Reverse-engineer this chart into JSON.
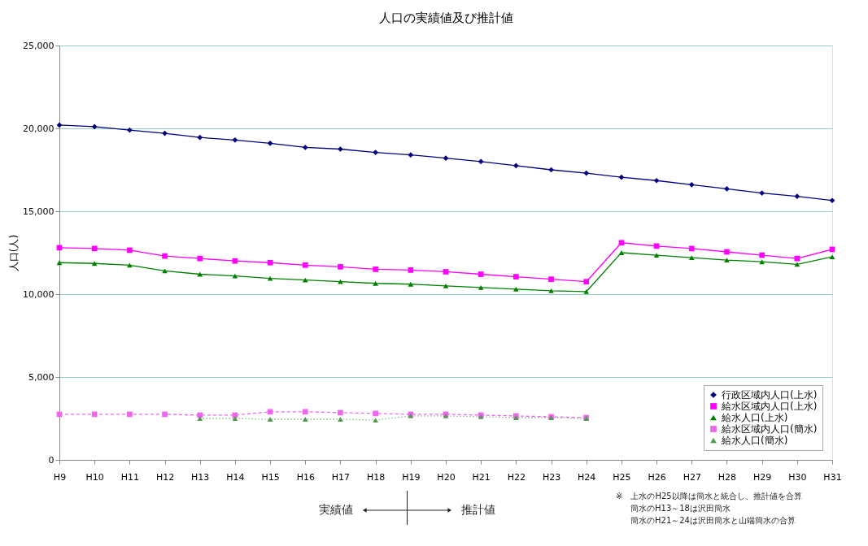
{
  "chart_data": {
    "type": "line",
    "title": "人口の実績値及び推計値",
    "ylabel": "人口(人)",
    "categories": [
      "H9",
      "H10",
      "H11",
      "H12",
      "H13",
      "H14",
      "H15",
      "H16",
      "H17",
      "H18",
      "H19",
      "H20",
      "H21",
      "H22",
      "H23",
      "H24",
      "H25",
      "H26",
      "H27",
      "H28",
      "H29",
      "H30",
      "H31"
    ],
    "series": [
      {
        "name": "行政区域内人口(上水)",
        "color": "#000080",
        "marker": "diamond",
        "line_style": "solid",
        "values": [
          20200,
          20100,
          19900,
          19700,
          19450,
          19300,
          19100,
          18850,
          18750,
          18550,
          18400,
          18200,
          18000,
          17750,
          17500,
          17300,
          17050,
          16850,
          16600,
          16350,
          16100,
          15900,
          15650
        ]
      },
      {
        "name": "給水区域内人口(上水)",
        "color": "#ff00ff",
        "marker": "square",
        "line_style": "solid",
        "values": [
          12800,
          12750,
          12650,
          12300,
          12150,
          12000,
          11900,
          11750,
          11650,
          11500,
          11450,
          11350,
          11200,
          11050,
          10900,
          10750,
          13100,
          12900,
          12750,
          12550,
          12350,
          12150,
          12700
        ]
      },
      {
        "name": "給水人口(上水)",
        "color": "#008000",
        "marker": "triangle",
        "line_style": "solid",
        "values": [
          11900,
          11850,
          11750,
          11400,
          11200,
          11100,
          10950,
          10850,
          10750,
          10650,
          10600,
          10500,
          10400,
          10300,
          10200,
          10150,
          12500,
          12350,
          12200,
          12050,
          11950,
          11800,
          12250
        ]
      },
      {
        "name": "給水区域内人口(簡水)",
        "color": "#ee66ee",
        "marker": "square",
        "line_style": "dashed",
        "values": [
          2750,
          2750,
          2750,
          2750,
          2700,
          2700,
          2900,
          2900,
          2850,
          2800,
          2750,
          2750,
          2700,
          2650,
          2600,
          2550,
          null,
          null,
          null,
          null,
          null,
          null,
          null
        ]
      },
      {
        "name": "給水人口(簡水)",
        "color": "#4f9a4f",
        "marker": "triangle",
        "line_style": "dotted",
        "values": [
          null,
          null,
          null,
          null,
          2500,
          2500,
          2450,
          2450,
          2450,
          2400,
          2650,
          2650,
          2600,
          2550,
          2550,
          2500,
          null,
          null,
          null,
          null,
          null,
          null,
          null
        ]
      }
    ],
    "ylim": [
      0,
      25000
    ],
    "yticks": [
      {
        "value": 0,
        "label": "0"
      },
      {
        "value": 5000,
        "label": "5,000"
      },
      {
        "value": 10000,
        "label": "10,000"
      },
      {
        "value": 15000,
        "label": "15,000"
      },
      {
        "value": 20000,
        "label": "20,000"
      },
      {
        "value": 25000,
        "label": "25,000"
      }
    ],
    "grid": "y",
    "legend": "bottom right",
    "annotations": [
      "実績値",
      "推計値",
      "※　上水のH25以降は簡水と統合し、推計値を合算",
      "簡水のH13～18は沢田簡水",
      "簡水のH21～24は沢田簡水と山端簡水の合算"
    ]
  }
}
